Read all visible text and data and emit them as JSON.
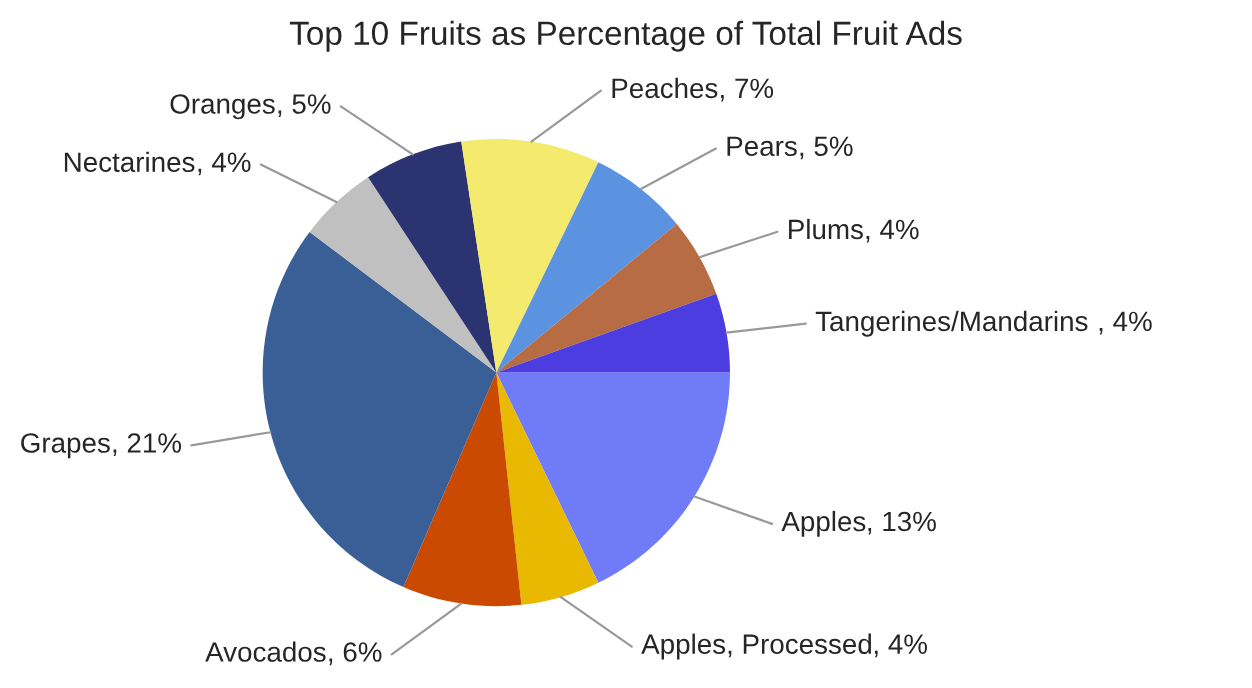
{
  "chart_data": {
    "type": "pie",
    "title": "Top 10 Fruits as Percentage of Total Fruit Ads",
    "categories": [
      "Apples",
      "Apples, Processed",
      "Avocados",
      "Grapes",
      "Nectarines",
      "Oranges",
      "Peaches",
      "Pears",
      "Plums",
      "Tangerines/Mandarins "
    ],
    "values": [
      13,
      4,
      6,
      21,
      4,
      5,
      7,
      5,
      4,
      4
    ],
    "value_labels": [
      ", 13%",
      ", 4%",
      ", 6%",
      ", 21%",
      ", 4%",
      ", 5%",
      ", 7%",
      ", 5%",
      ", 4%",
      ", 4%"
    ],
    "colors": [
      "#6f7bf7",
      "#e9b800",
      "#c94a00",
      "#3a5e96",
      "#c0c0c0",
      "#2b3470",
      "#f3ea6e",
      "#5b93e0",
      "#b86c44",
      "#4b3de0"
    ],
    "legend": false
  }
}
